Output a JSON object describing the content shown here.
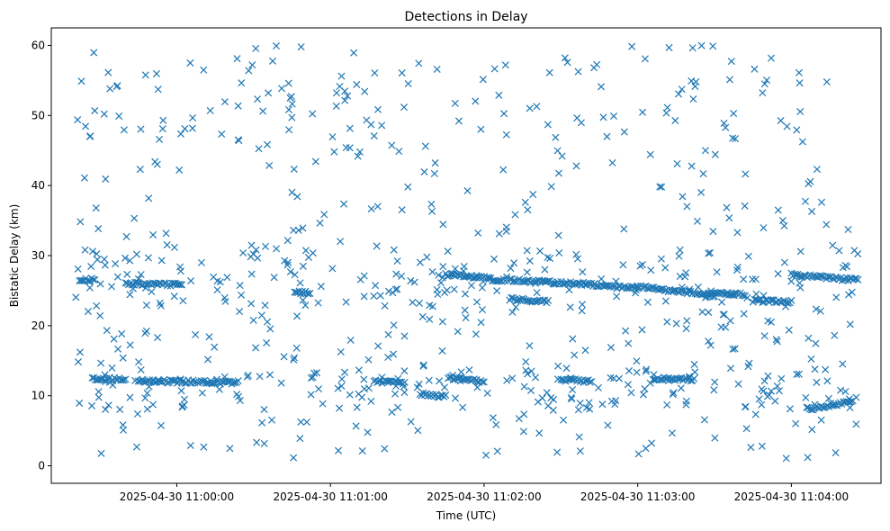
{
  "chart_data": {
    "type": "scatter",
    "title": "Detections in Delay",
    "xlabel": "Time (UTC)",
    "ylabel": "Bistatic Delay (km)",
    "x_start": "2025-04-30 10:59:20",
    "x_end": "2025-04-30 11:04:26",
    "xlim": [
      "2025-04-30 10:59:11",
      "2025-04-30 11:04:35"
    ],
    "ylim": [
      -2.5,
      62.5
    ],
    "x_ticks": [
      "2025-04-30 11:00:00",
      "2025-04-30 11:01:00",
      "2025-04-30 11:02:00",
      "2025-04-30 11:03:00",
      "2025-04-30 11:04:00"
    ],
    "y_ticks": [
      0,
      10,
      20,
      30,
      40,
      50,
      60
    ],
    "marker": "x",
    "color": "#1f77b4",
    "grid": false,
    "tracks": [
      {
        "start": "2025-04-30 10:59:22",
        "end": "2025-04-30 10:59:28",
        "y_start": 26.6,
        "y_end": 26.5
      },
      {
        "start": "2025-04-30 10:59:40",
        "end": "2025-04-30 11:00:02",
        "y_start": 26.0,
        "y_end": 25.8
      },
      {
        "start": "2025-04-30 10:59:27",
        "end": "2025-04-30 10:59:40",
        "y_start": 12.4,
        "y_end": 12.3
      },
      {
        "start": "2025-04-30 10:59:45",
        "end": "2025-04-30 11:00:24",
        "y_start": 12.1,
        "y_end": 11.9
      },
      {
        "start": "2025-04-30 11:00:46",
        "end": "2025-04-30 11:00:52",
        "y_start": 24.9,
        "y_end": 24.6
      },
      {
        "start": "2025-04-30 11:01:17",
        "end": "2025-04-30 11:01:29",
        "y_start": 12.0,
        "y_end": 11.9
      },
      {
        "start": "2025-04-30 11:01:35",
        "end": "2025-04-30 11:01:45",
        "y_start": 10.2,
        "y_end": 9.9
      },
      {
        "start": "2025-04-30 11:01:45",
        "end": "2025-04-30 11:02:02",
        "y_start": 27.3,
        "y_end": 26.8
      },
      {
        "start": "2025-04-30 11:02:02",
        "end": "2025-04-30 11:02:40",
        "y_start": 26.6,
        "y_end": 25.9
      },
      {
        "start": "2025-04-30 11:02:40",
        "end": "2025-04-30 11:03:00",
        "y_start": 25.9,
        "y_end": 25.3
      },
      {
        "start": "2025-04-30 11:03:00",
        "end": "2025-04-30 11:03:30",
        "y_start": 25.6,
        "y_end": 24.3
      },
      {
        "start": "2025-04-30 11:03:28",
        "end": "2025-04-30 11:03:42",
        "y_start": 24.9,
        "y_end": 24.4
      },
      {
        "start": "2025-04-30 11:02:10",
        "end": "2025-04-30 11:02:25",
        "y_start": 23.8,
        "y_end": 23.4
      },
      {
        "start": "2025-04-30 11:03:45",
        "end": "2025-04-30 11:04:00",
        "y_start": 23.6,
        "y_end": 23.4
      },
      {
        "start": "2025-04-30 11:04:00",
        "end": "2025-04-30 11:04:26",
        "y_start": 27.3,
        "y_end": 26.5
      },
      {
        "start": "2025-04-30 11:01:46",
        "end": "2025-04-30 11:02:00",
        "y_start": 12.5,
        "y_end": 12.1
      },
      {
        "start": "2025-04-30 11:02:30",
        "end": "2025-04-30 11:02:42",
        "y_start": 12.3,
        "y_end": 12.0
      },
      {
        "start": "2025-04-30 11:03:06",
        "end": "2025-04-30 11:03:22",
        "y_start": 12.4,
        "y_end": 12.3
      },
      {
        "start": "2025-04-30 11:04:06",
        "end": "2025-04-30 11:04:24",
        "y_start": 8.1,
        "y_end": 9.2
      }
    ]
  }
}
